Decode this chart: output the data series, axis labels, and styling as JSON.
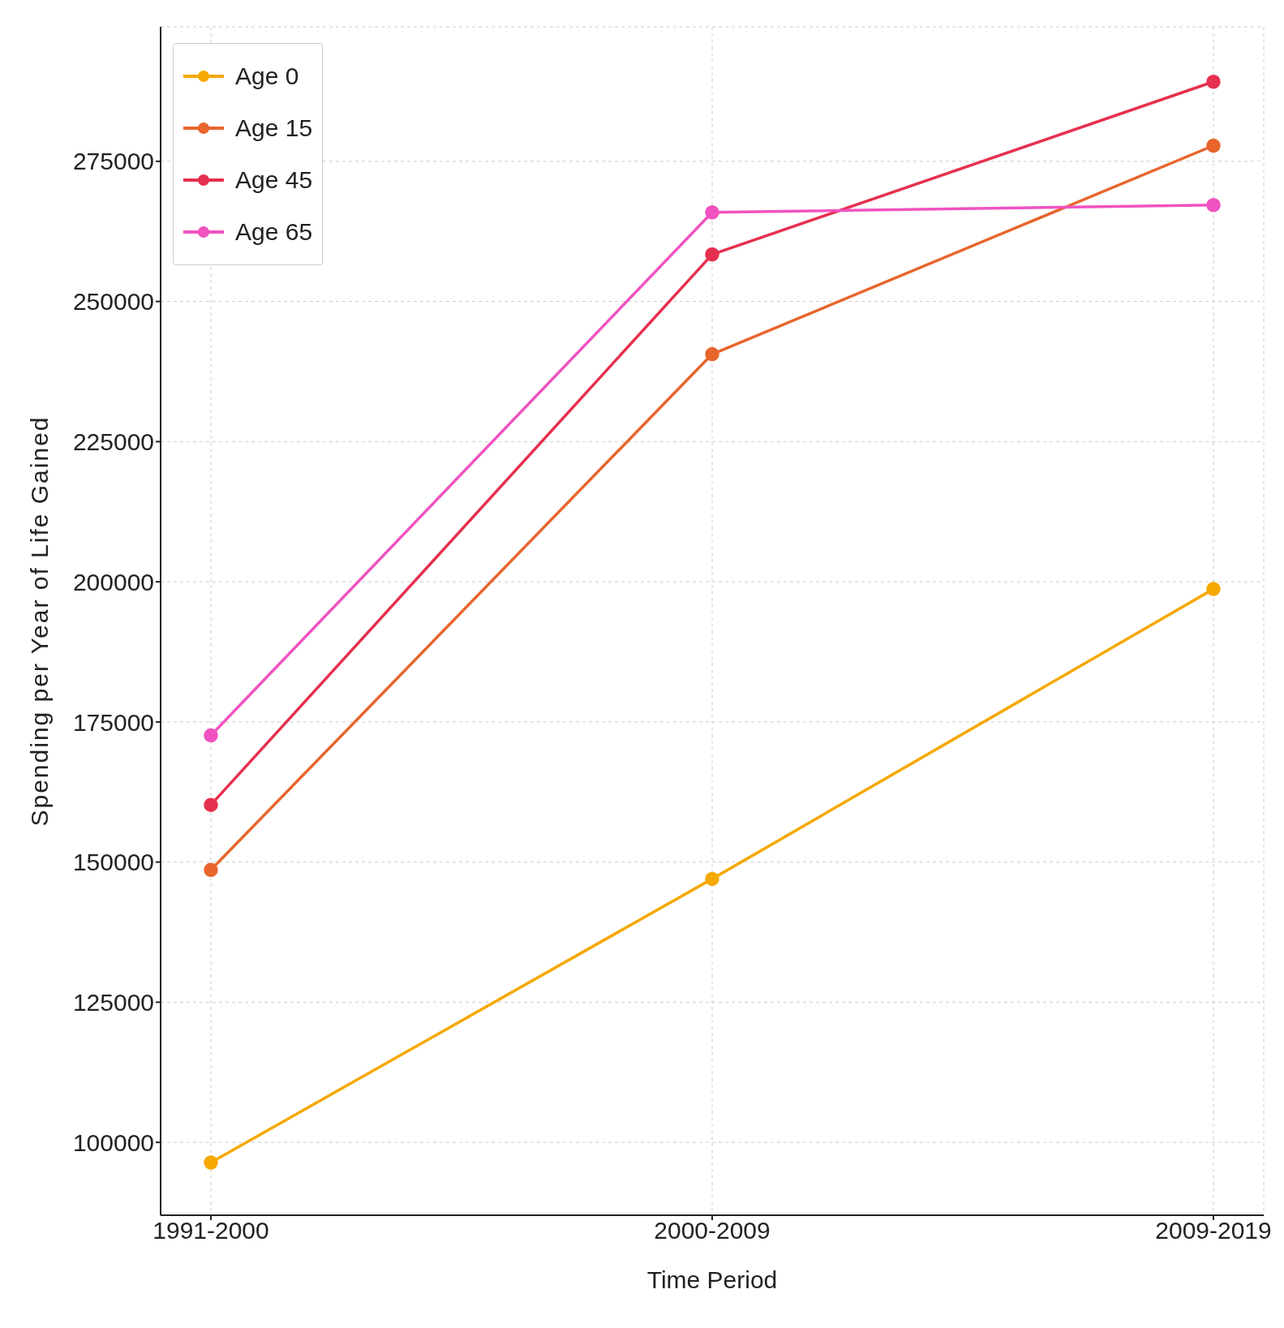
{
  "chart_data": {
    "type": "line",
    "xlabel": "Time Period",
    "ylabel": "Spending per Year of Life Gained",
    "categories": [
      "1991-2000",
      "2000-2009",
      "2009-2019"
    ],
    "series": [
      {
        "name": "Age 0",
        "color": "#f5a800",
        "values": [
          96400,
          147000,
          198700
        ]
      },
      {
        "name": "Age 15",
        "color": "#e8652c",
        "values": [
          148600,
          240600,
          277800
        ]
      },
      {
        "name": "Age 45",
        "color": "#e6304f",
        "values": [
          160200,
          258400,
          289200
        ]
      },
      {
        "name": "Age 65",
        "color": "#f053c0",
        "values": [
          172600,
          265900,
          267200
        ]
      }
    ],
    "ylim": [
      87000,
      299000
    ],
    "yticks": [
      100000,
      125000,
      150000,
      175000,
      200000,
      225000,
      250000,
      275000
    ],
    "grid": true,
    "legend": "top left",
    "marker": "circle",
    "line_style": "solid"
  }
}
